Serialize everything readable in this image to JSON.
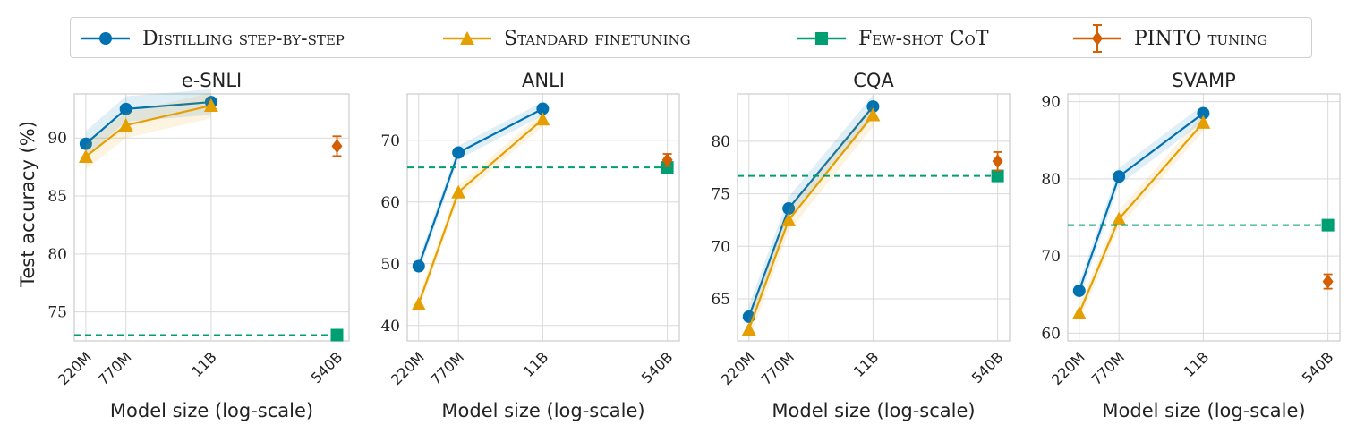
{
  "legend": [
    {
      "label": "Distilling step-by-step",
      "color": "#0072B2",
      "marker": "circle",
      "line": "solid"
    },
    {
      "label": "Standard finetuning",
      "color": "#E69F00",
      "marker": "triangle",
      "line": "solid"
    },
    {
      "label": "Few-shot CoT",
      "color": "#009E73",
      "marker": "square",
      "line": "dashed"
    },
    {
      "label": "PINTO tuning",
      "color": "#D55E00",
      "marker": "diamond",
      "line": "errorbar"
    }
  ],
  "ylabel": "Test accuracy (%)",
  "chart_data": [
    {
      "type": "line",
      "title": "e-SNLI",
      "xlabel": "Model size (log-scale)",
      "x": [
        "220M",
        "770M",
        "11B",
        "540B"
      ],
      "ylim": [
        72.5,
        93.8
      ],
      "yticks": [
        75,
        80,
        85,
        90
      ],
      "series": [
        {
          "name": "Distilling step-by-step",
          "x": [
            "220M",
            "770M",
            "11B"
          ],
          "values": [
            89.5,
            92.5,
            93.1
          ]
        },
        {
          "name": "Standard finetuning",
          "x": [
            "220M",
            "770M",
            "11B"
          ],
          "values": [
            88.4,
            91.1,
            92.8
          ]
        },
        {
          "name": "Few-shot CoT",
          "x": [
            "540B"
          ],
          "values": [
            73.0
          ]
        },
        {
          "name": "PINTO tuning",
          "x": [
            "540B"
          ],
          "values": [
            89.3
          ]
        }
      ]
    },
    {
      "type": "line",
      "title": "ANLI",
      "xlabel": "Model size (log-scale)",
      "x": [
        "220M",
        "770M",
        "11B",
        "540B"
      ],
      "ylim": [
        37.5,
        77.5
      ],
      "yticks": [
        40,
        50,
        60,
        70
      ],
      "series": [
        {
          "name": "Distilling step-by-step",
          "x": [
            "220M",
            "770M",
            "11B"
          ],
          "values": [
            49.6,
            68.0,
            75.1
          ]
        },
        {
          "name": "Standard finetuning",
          "x": [
            "220M",
            "770M",
            "11B"
          ],
          "values": [
            43.5,
            61.6,
            73.4
          ]
        },
        {
          "name": "Few-shot CoT",
          "x": [
            "540B"
          ],
          "values": [
            65.6
          ]
        },
        {
          "name": "PINTO tuning",
          "x": [
            "540B"
          ],
          "values": [
            66.8
          ]
        }
      ]
    },
    {
      "type": "line",
      "title": "CQA",
      "xlabel": "Model size (log-scale)",
      "x": [
        "220M",
        "770M",
        "11B",
        "540B"
      ],
      "ylim": [
        61.0,
        84.5
      ],
      "yticks": [
        65,
        70,
        75,
        80
      ],
      "series": [
        {
          "name": "Distilling step-by-step",
          "x": [
            "220M",
            "770M",
            "11B"
          ],
          "values": [
            63.3,
            73.6,
            83.3
          ]
        },
        {
          "name": "Standard finetuning",
          "x": [
            "220M",
            "770M",
            "11B"
          ],
          "values": [
            62.1,
            72.5,
            82.5
          ]
        },
        {
          "name": "Few-shot CoT",
          "x": [
            "540B"
          ],
          "values": [
            76.7
          ]
        },
        {
          "name": "PINTO tuning",
          "x": [
            "540B"
          ],
          "values": [
            78.1
          ]
        }
      ]
    },
    {
      "type": "line",
      "title": "SVAMP",
      "xlabel": "Model size (log-scale)",
      "x": [
        "220M",
        "770M",
        "11B",
        "540B"
      ],
      "ylim": [
        59.0,
        91.0
      ],
      "yticks": [
        60,
        70,
        80,
        90
      ],
      "series": [
        {
          "name": "Distilling step-by-step",
          "x": [
            "220M",
            "770M",
            "11B"
          ],
          "values": [
            65.5,
            80.3,
            88.5
          ]
        },
        {
          "name": "Standard finetuning",
          "x": [
            "220M",
            "770M",
            "11B"
          ],
          "values": [
            62.6,
            74.8,
            87.3
          ]
        },
        {
          "name": "Few-shot CoT",
          "x": [
            "540B"
          ],
          "values": [
            74.0
          ]
        },
        {
          "name": "PINTO tuning",
          "x": [
            "540B"
          ],
          "values": [
            66.7
          ]
        }
      ]
    }
  ]
}
